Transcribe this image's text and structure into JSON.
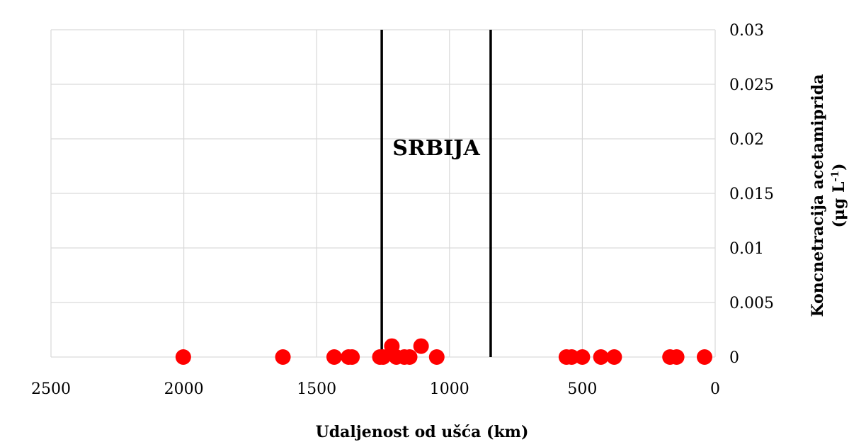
{
  "chart_data": {
    "type": "scatter",
    "xlabel": "Udaljenost od ušća (km)",
    "ylabel": "Koncnetracija acetamiprida",
    "ylabel_unit_base": "(μg L",
    "ylabel_unit_sup": "-1",
    "ylabel_unit_end": ")",
    "xlim": [
      2500,
      0
    ],
    "ylim": [
      0,
      0.03
    ],
    "x_reversed": true,
    "x_ticks": [
      2500,
      2000,
      1500,
      1000,
      500,
      0
    ],
    "y_ticks": [
      0,
      0.005,
      0.01,
      0.015,
      0.02,
      0.025,
      0.03
    ],
    "x_tick_labels": [
      "2500",
      "2000",
      "1500",
      "1000",
      "500",
      "0"
    ],
    "y_tick_labels": [
      "0",
      "0.005",
      "0.01",
      "0.015",
      "0.02",
      "0.025",
      "0.03"
    ],
    "y_axis_side": "right",
    "grid": true,
    "legend": "none",
    "colors": {
      "points": "#ff0000",
      "grid": "#d9d9d9",
      "boundary": "#000000"
    },
    "points": [
      {
        "x": 2002,
        "y": 0
      },
      {
        "x": 1627,
        "y": 0
      },
      {
        "x": 1434,
        "y": 0
      },
      {
        "x": 1380,
        "y": 0
      },
      {
        "x": 1367,
        "y": 0
      },
      {
        "x": 1262,
        "y": 0
      },
      {
        "x": 1250,
        "y": 0
      },
      {
        "x": 1217,
        "y": 0.001
      },
      {
        "x": 1200,
        "y": 0
      },
      {
        "x": 1170,
        "y": 0
      },
      {
        "x": 1150,
        "y": 0
      },
      {
        "x": 1107,
        "y": 0.001
      },
      {
        "x": 1048,
        "y": 0
      },
      {
        "x": 560,
        "y": 0
      },
      {
        "x": 540,
        "y": 0
      },
      {
        "x": 500,
        "y": 0
      },
      {
        "x": 430,
        "y": 0
      },
      {
        "x": 380,
        "y": 0
      },
      {
        "x": 170,
        "y": 0
      },
      {
        "x": 145,
        "y": 0
      },
      {
        "x": 40,
        "y": 0
      }
    ],
    "vertical_lines": [
      {
        "x": 1255
      },
      {
        "x": 845
      }
    ],
    "annotations": [
      {
        "text": "SRBIJA",
        "x": 1050,
        "y": 0.0185
      }
    ]
  }
}
